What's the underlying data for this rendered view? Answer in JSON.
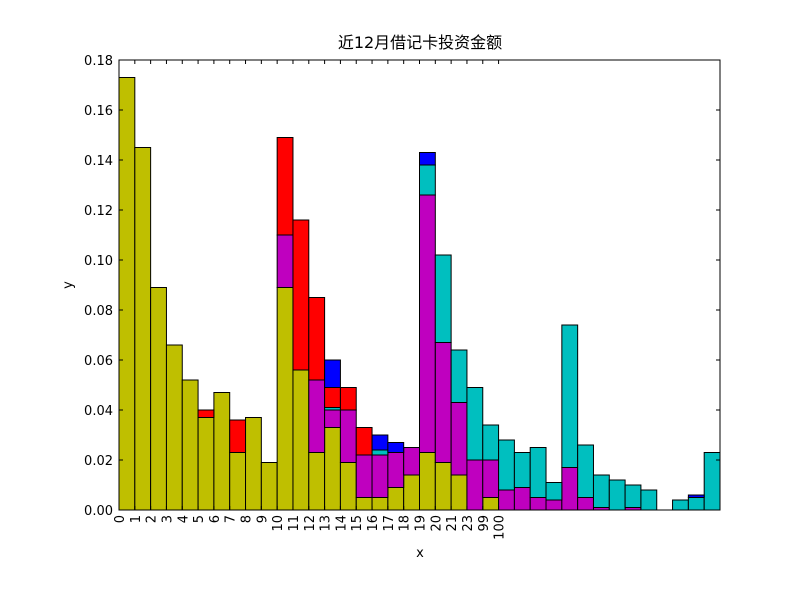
{
  "chart_data": {
    "type": "bar",
    "stacked": true,
    "title": "近12月借记卡投资金额",
    "x_label": "x",
    "y_label": "y",
    "categories": [
      "0",
      "1",
      "2",
      "3",
      "4",
      "5",
      "6",
      "7",
      "8",
      "9",
      "10",
      "11",
      "12",
      "13",
      "14",
      "15",
      "16",
      "17",
      "18",
      "19",
      "20",
      "21",
      "23",
      "99",
      "100",
      null,
      null,
      null,
      null,
      null,
      null,
      null,
      null,
      null,
      null,
      null,
      null,
      null
    ],
    "series": [
      {
        "color": "#bfbf00",
        "values": [
          0.173,
          0.145,
          0.089,
          0.066,
          0.052,
          0.037,
          0.047,
          0.023,
          0.037,
          0.019,
          0.089,
          0.056,
          0.023,
          0.033,
          0.019,
          0.005,
          0.005,
          0.009,
          0.014,
          0.023,
          0.019,
          0.014,
          0,
          0.005,
          0,
          0,
          0,
          0,
          0,
          0,
          0,
          0,
          0,
          0,
          0,
          0,
          0,
          0
        ]
      },
      {
        "color": "#bf00bf",
        "values": [
          0,
          0,
          0,
          0,
          0,
          0,
          0,
          0,
          0,
          0,
          0.021,
          0,
          0.029,
          0.007,
          0.021,
          0.017,
          0.017,
          0.014,
          0.011,
          0.103,
          0.048,
          0.029,
          0.02,
          0.015,
          0.008,
          0.009,
          0.005,
          0.004,
          0.017,
          0.005,
          0.001,
          0,
          0.001,
          0,
          0,
          0,
          0,
          0
        ]
      },
      {
        "color": "#00bfbf",
        "values": [
          0,
          0,
          0,
          0,
          0,
          0,
          0,
          0,
          0,
          0,
          0,
          0,
          0,
          0.001,
          0,
          0,
          0.002,
          0,
          0,
          0.012,
          0.035,
          0.021,
          0.029,
          0.014,
          0.02,
          0.014,
          0.02,
          0.007,
          0.057,
          0.021,
          0.013,
          0.012,
          0.009,
          0.008,
          0,
          0.004,
          0.005,
          0.023
        ]
      },
      {
        "color": "#ff0000",
        "values": [
          0,
          0,
          0,
          0,
          0,
          0.003,
          0,
          0.013,
          0,
          0,
          0.039,
          0.06,
          0.033,
          0.008,
          0.009,
          0.011,
          0,
          0,
          0,
          0,
          0,
          0,
          0,
          0,
          0,
          0,
          0,
          0,
          0,
          0,
          0,
          0,
          0,
          0,
          0,
          0,
          0,
          0
        ]
      },
      {
        "color": "#0000ff",
        "values": [
          0,
          0,
          0,
          0,
          0,
          0,
          0,
          0,
          0,
          0,
          0,
          0,
          0,
          0.011,
          0,
          0,
          0.006,
          0.004,
          0,
          0.005,
          0,
          0,
          0,
          0,
          0,
          0,
          0,
          0,
          0,
          0,
          0,
          0,
          0,
          0,
          0,
          0,
          0.001,
          0
        ]
      }
    ],
    "ylim": [
      0,
      0.18
    ],
    "yticks": [
      {
        "value": 0,
        "label": "0.00"
      },
      0.02,
      0.04,
      0.06,
      0.08,
      {
        "value": 0.1,
        "label": "0.10"
      },
      0.12,
      0.14,
      0.16,
      0.18
    ],
    "grid": false
  }
}
